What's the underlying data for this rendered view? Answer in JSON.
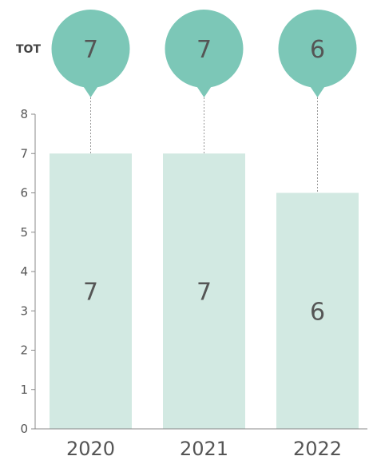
{
  "chart_data": {
    "type": "bar",
    "categories": [
      "2020",
      "2021",
      "2022"
    ],
    "values": [
      7,
      7,
      6
    ],
    "totals_label": "TOT",
    "totals": [
      7,
      7,
      6
    ],
    "ylim": [
      0,
      8
    ],
    "yticks": [
      0,
      1,
      2,
      3,
      4,
      5,
      6,
      7,
      8
    ],
    "grid": false,
    "colors": {
      "bar": "#d2e9e2",
      "bubble": "#7cc7b7",
      "axis": "#888888",
      "connector": "#999999"
    }
  }
}
